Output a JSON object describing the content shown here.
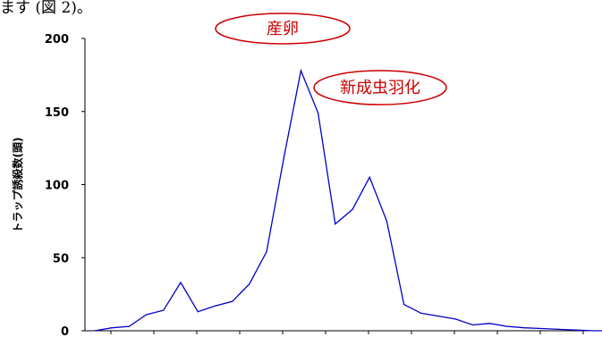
{
  "document": {
    "top_text": "ます (図 2)。"
  },
  "chart_data": {
    "type": "line",
    "title": "",
    "xlabel": "",
    "ylabel": "トラップ誘殺数(頭)",
    "ylim": [
      0,
      200
    ],
    "yticks": [
      0,
      50,
      100,
      150,
      200
    ],
    "grid": false,
    "series": [
      {
        "color": "#0000cc",
        "values": [
          0,
          2,
          3,
          11,
          14,
          33,
          13,
          17,
          20,
          32,
          54,
          118,
          178,
          149,
          73,
          83,
          105,
          75,
          18,
          12,
          10,
          8,
          4,
          5,
          3,
          2,
          1.5,
          1,
          0.5,
          0,
          0
        ]
      }
    ],
    "annotations": [
      {
        "text": "産卵",
        "color": "#cc0000",
        "near_point": 12
      },
      {
        "text": "新成虫羽化",
        "color": "#cc0000",
        "near_point": 16
      }
    ]
  }
}
